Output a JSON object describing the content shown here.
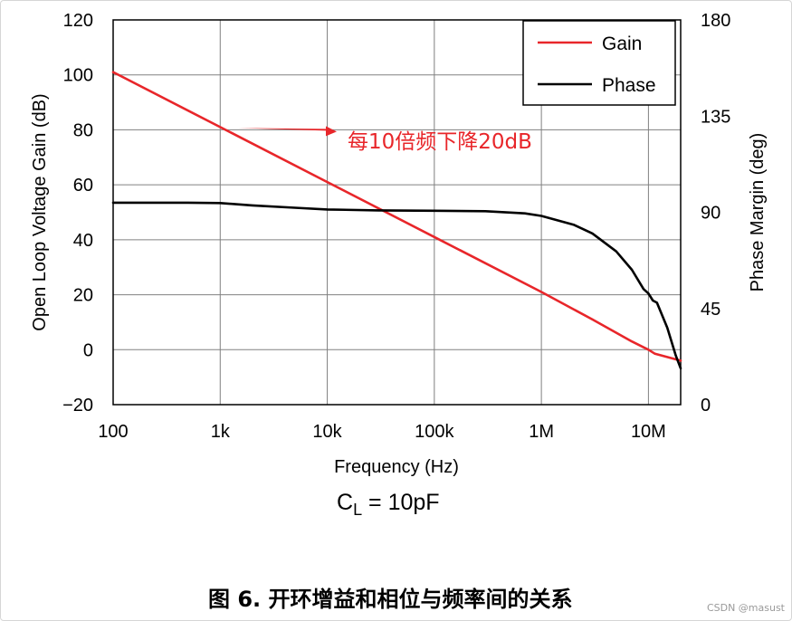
{
  "chart_data": {
    "type": "line",
    "xscale": "log",
    "xlim": [
      100,
      20000000
    ],
    "x_ticks": [
      {
        "value": 100,
        "label": "100"
      },
      {
        "value": 1000,
        "label": "1k"
      },
      {
        "value": 10000,
        "label": "10k"
      },
      {
        "value": 100000,
        "label": "100k"
      },
      {
        "value": 1000000,
        "label": "1M"
      },
      {
        "value": 10000000,
        "label": "10M"
      }
    ],
    "xlabel": "Frequency (Hz)",
    "ylabel": "Open Loop Voltage Gain (dB)",
    "ylim": [
      -20,
      120
    ],
    "y_ticks": [
      -20,
      0,
      20,
      40,
      60,
      80,
      100,
      120
    ],
    "y_tick_labels": [
      "−20",
      "0",
      "20",
      "40",
      "60",
      "80",
      "100",
      "120"
    ],
    "y2label": "Phase Margin (deg)",
    "y2lim": [
      0,
      180
    ],
    "y2_ticks": [
      0,
      45,
      90,
      135,
      180
    ],
    "y2_tick_labels": [
      "0",
      "45",
      "90",
      "135",
      "180"
    ],
    "grid": true,
    "legend": {
      "position": "top-right",
      "entries": [
        "Gain",
        "Phase"
      ]
    },
    "series": [
      {
        "name": "Gain",
        "color": "#e8262a",
        "axis": "left",
        "points": [
          [
            100,
            101
          ],
          [
            1000,
            81
          ],
          [
            10000,
            61
          ],
          [
            100000,
            41
          ],
          [
            1000000,
            21
          ],
          [
            3000000,
            11
          ],
          [
            7000000,
            3
          ],
          [
            10000000,
            0
          ],
          [
            11500000,
            -1.5
          ],
          [
            20000000,
            -4
          ]
        ]
      },
      {
        "name": "Phase",
        "color": "#000000",
        "axis": "right",
        "points": [
          [
            100,
            94.5
          ],
          [
            500,
            94.5
          ],
          [
            1000,
            94.3
          ],
          [
            2000,
            93.2
          ],
          [
            5000,
            92.1
          ],
          [
            10000,
            91.3
          ],
          [
            30000,
            90.9
          ],
          [
            100000,
            90.7
          ],
          [
            300000,
            90.5
          ],
          [
            700000,
            89.5
          ],
          [
            1000000,
            88.3
          ],
          [
            2000000,
            84.2
          ],
          [
            3000000,
            80.1
          ],
          [
            5000000,
            71.7
          ],
          [
            7000000,
            63.1
          ],
          [
            9000000,
            54.1
          ],
          [
            10000000,
            52.0
          ],
          [
            11000000,
            48.7
          ],
          [
            12000000,
            47.7
          ],
          [
            15000000,
            36.0
          ],
          [
            18000000,
            23.0
          ],
          [
            20000000,
            17.0
          ]
        ]
      }
    ],
    "annotation": {
      "text": "每10倍频下降20dB",
      "color": "#e8262a",
      "points_to": [
        1000,
        81
      ]
    }
  },
  "condition_label": {
    "prefix": "C",
    "subscript": "L",
    "suffix": " = 10pF"
  },
  "caption": "图 6. 开环增益和相位与频率间的关系",
  "watermark": "CSDN @masust"
}
